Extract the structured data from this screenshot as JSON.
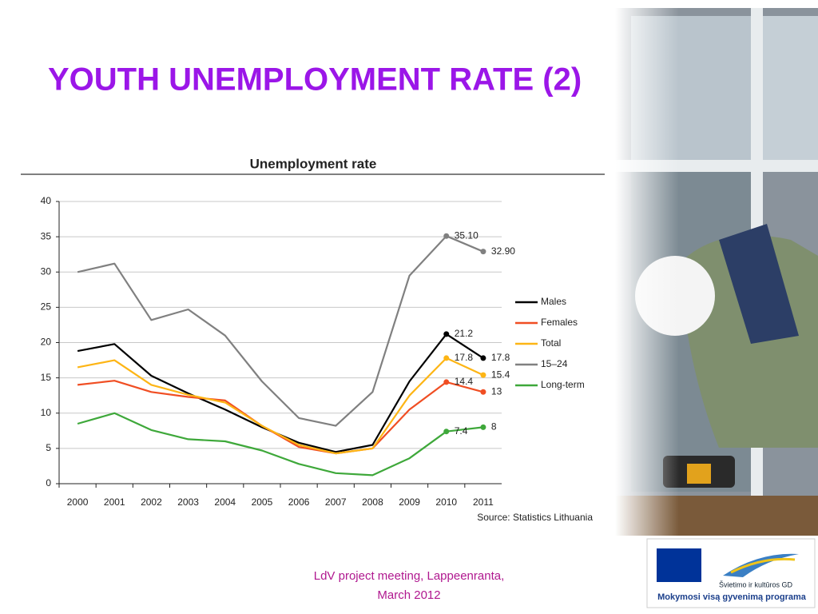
{
  "slide": {
    "title": "YOUTH UNEMPLOYMENT RATE (2)",
    "footer": [
      "LdV project meeting, Lappeenranta,",
      "March 2012"
    ],
    "logo": [
      "Švietimo ir kultūros GD",
      "Mokymosi visą gyvenimą programa"
    ]
  },
  "chart_data": {
    "type": "line",
    "title": "Unemployment rate",
    "source": "Source: Statistics Lithuania",
    "categories": [
      "2000",
      "2001",
      "2002",
      "2003",
      "2004",
      "2005",
      "2006",
      "2007",
      "2008",
      "2009",
      "2010",
      "2011"
    ],
    "ylim": [
      0,
      40
    ],
    "yticks": [
      0,
      5,
      10,
      15,
      20,
      25,
      30,
      35,
      40
    ],
    "grid": true,
    "legend": "right",
    "series": [
      {
        "name": "Males",
        "color": "#000000",
        "values": [
          18.8,
          19.8,
          15.3,
          12.8,
          10.5,
          8,
          5.8,
          4.5,
          5.5,
          14.5,
          21.2,
          17.8
        ],
        "value_labels": [
          null,
          null,
          null,
          null,
          null,
          null,
          null,
          null,
          null,
          null,
          "21.2",
          "17.8"
        ]
      },
      {
        "name": "Females",
        "color": "#f04e23",
        "values": [
          14,
          14.6,
          13,
          12.3,
          11.8,
          8.2,
          5.2,
          4.3,
          5,
          10.5,
          14.4,
          13
        ],
        "value_labels": [
          null,
          null,
          null,
          null,
          null,
          null,
          null,
          null,
          null,
          null,
          "14.4",
          "13"
        ]
      },
      {
        "name": "Total",
        "color": "#fdb515",
        "values": [
          16.5,
          17.5,
          14,
          12.6,
          11.5,
          8.2,
          5.5,
          4.3,
          5,
          12.5,
          17.8,
          15.4
        ],
        "value_labels": [
          null,
          null,
          null,
          null,
          null,
          null,
          null,
          null,
          null,
          null,
          "17.8",
          "15.4"
        ]
      },
      {
        "name": "15–24",
        "color": "#808080",
        "values": [
          30,
          31.2,
          23.2,
          24.7,
          21,
          14.5,
          9.3,
          8.2,
          13,
          29.5,
          35.1,
          32.9
        ],
        "value_labels": [
          null,
          null,
          null,
          null,
          null,
          null,
          null,
          null,
          null,
          null,
          "35.10",
          "32.90"
        ]
      },
      {
        "name": "Long-term",
        "color": "#3ea83a",
        "values": [
          8.5,
          10,
          7.6,
          6.3,
          6,
          4.7,
          2.8,
          1.5,
          1.2,
          3.6,
          7.4,
          8
        ],
        "value_labels": [
          null,
          null,
          null,
          null,
          null,
          null,
          null,
          null,
          null,
          null,
          "7.4",
          "8"
        ]
      }
    ]
  }
}
